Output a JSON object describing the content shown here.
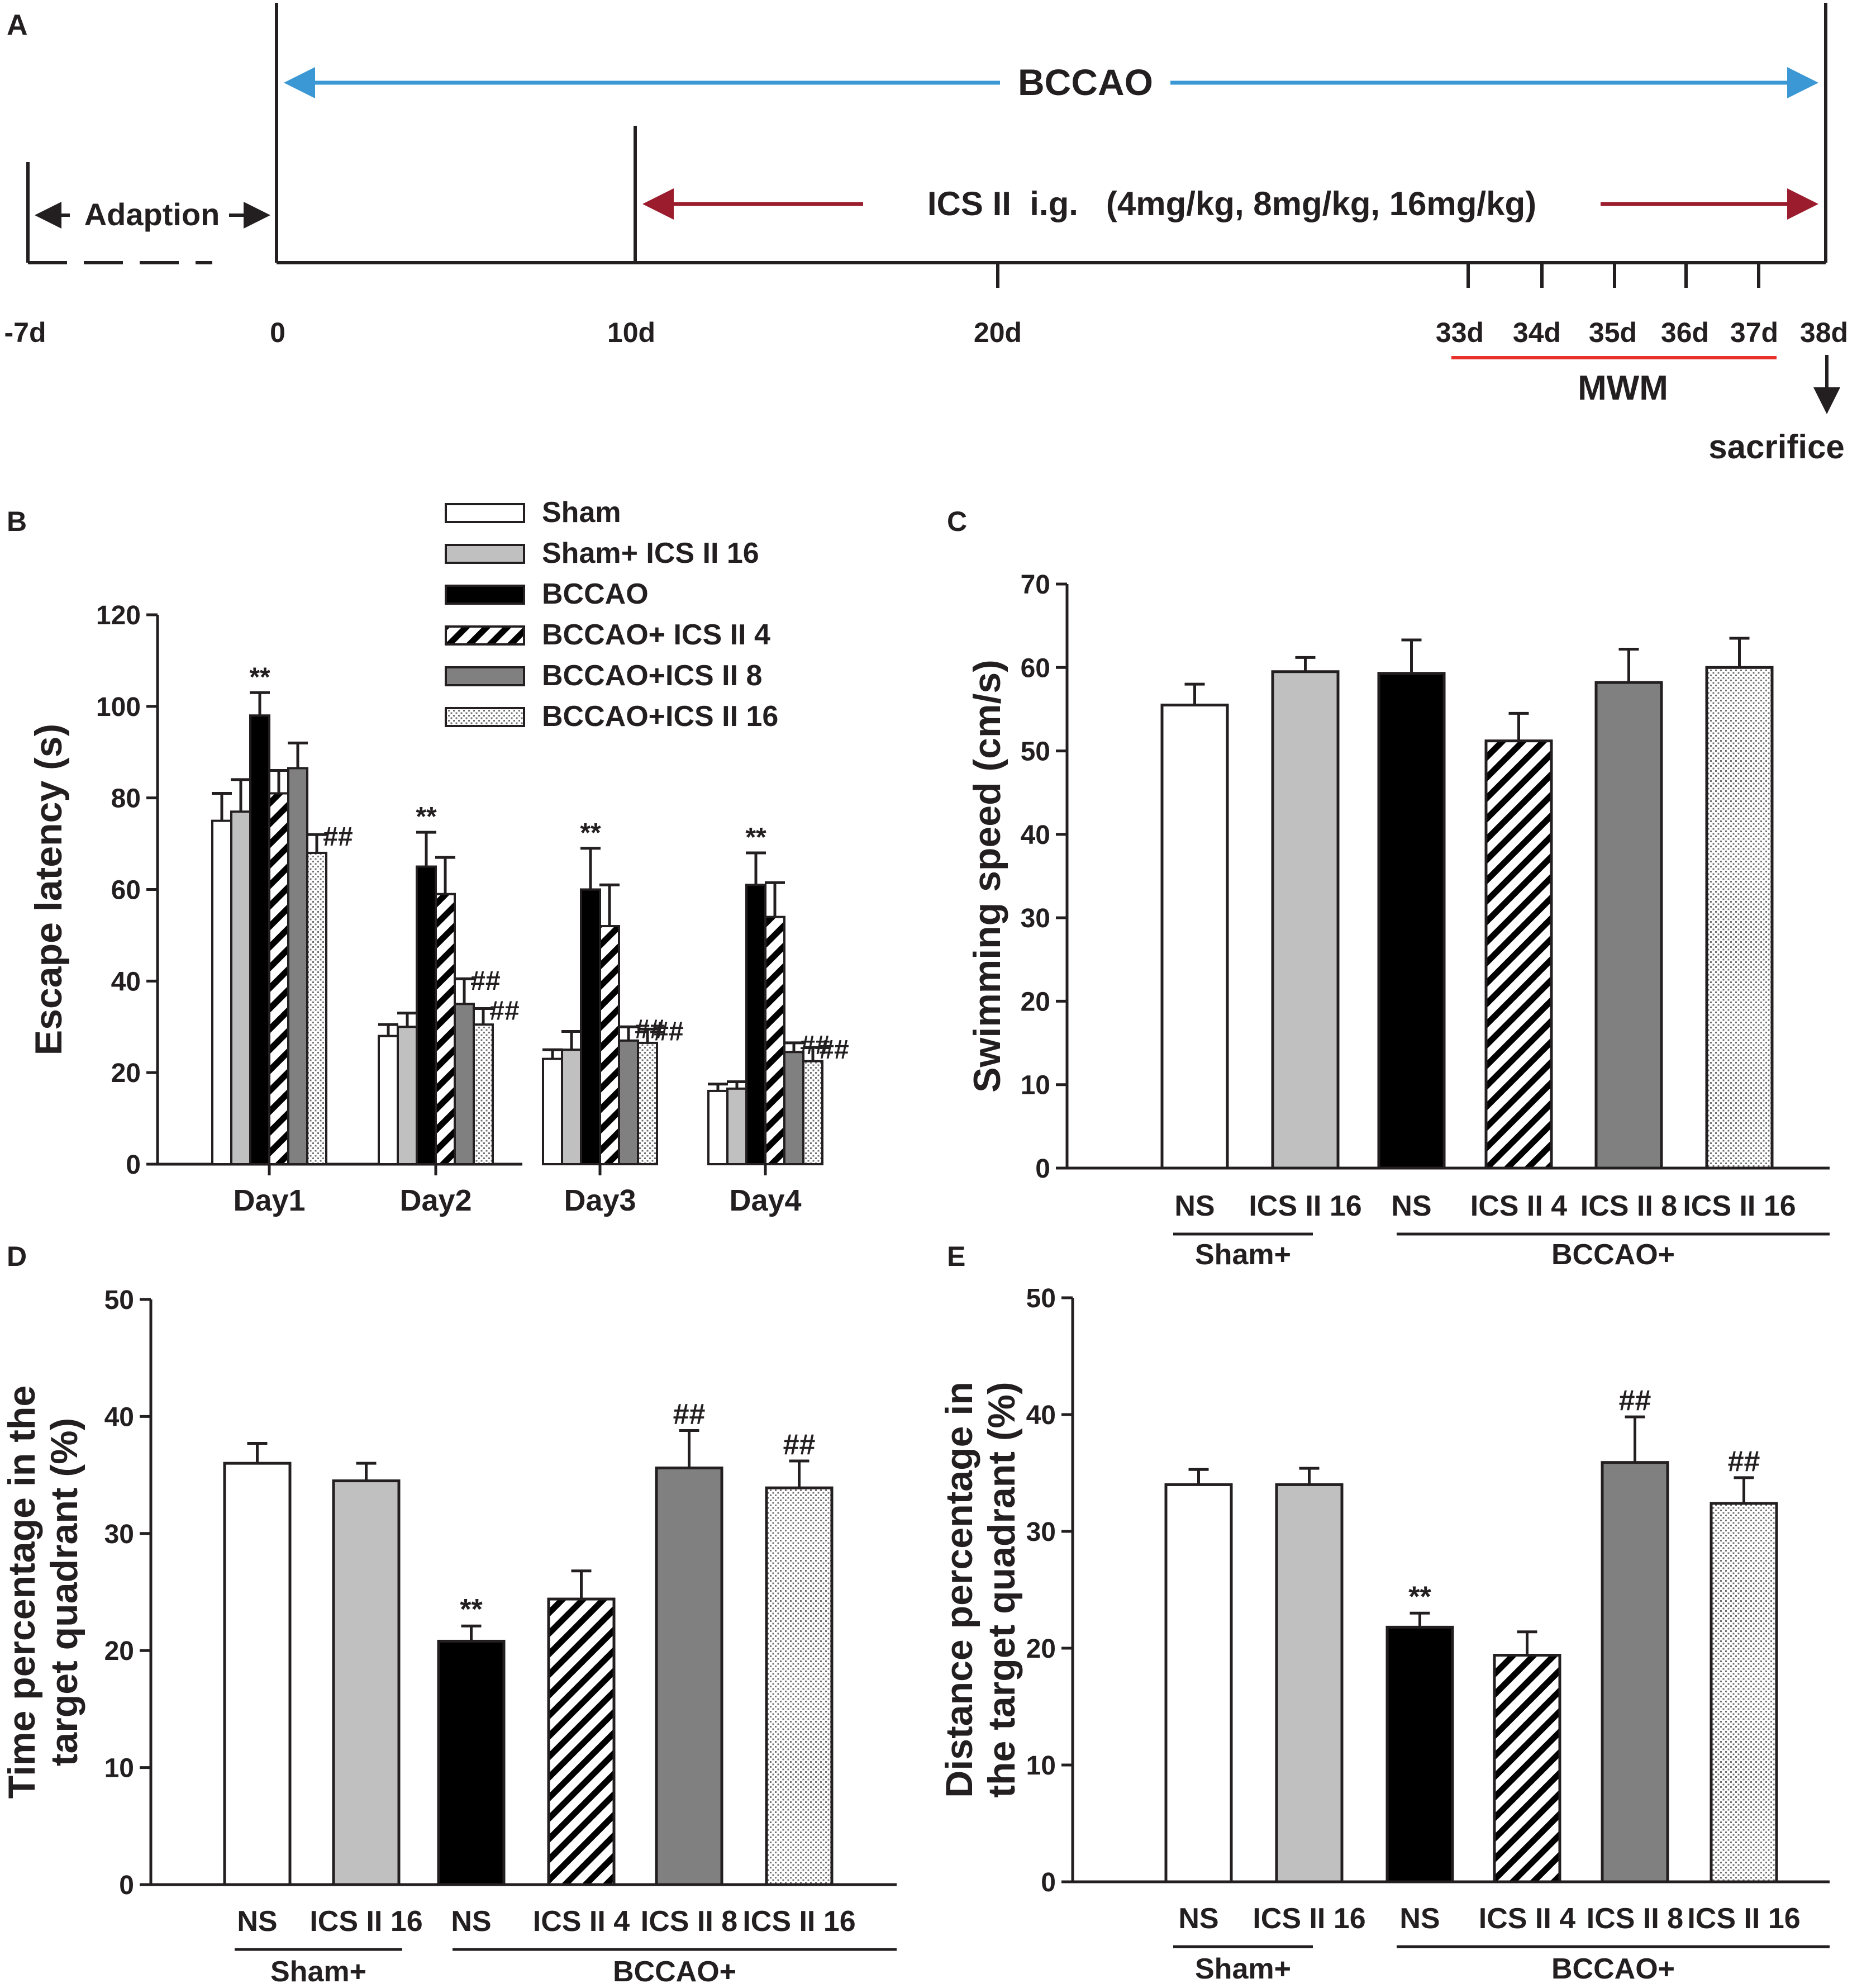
{
  "colors": {
    "sham": "#ffffff",
    "sham_ics16": "#c0c0c0",
    "bccao": "#000000",
    "bccao_ics4": "hatch",
    "bccao_ics8": "#808080",
    "bccao_ics16": "dots",
    "bccao_arrow": "#3b98d4",
    "ics_arrow": "#9b1c2c",
    "mwm_line": "#e8312a",
    "ink": "#231f20"
  },
  "timeline": {
    "panel_label": "A",
    "bccao_label": "BCCAO",
    "ics_label": "ICS II  i.g.   (4mg/kg, 8mg/kg, 16mg/kg)",
    "adaption_label": "Adaption",
    "ticks": [
      "-7d",
      "0",
      "10d",
      "20d",
      "33d",
      "34d",
      "35d",
      "36d",
      "37d",
      "38d"
    ],
    "mwm_label": "MWM",
    "sacrifice_label": "sacrifice"
  },
  "legend": {
    "items": [
      "Sham",
      "Sham+ ICS II 16",
      "BCCAO",
      "BCCAO+ ICS II 4",
      "BCCAO+ICS II 8",
      "BCCAO+ICS II 16"
    ]
  },
  "group_labels": {
    "sham_plus": "Sham+",
    "bccao_plus": "BCCAO+"
  },
  "chart_data": [
    {
      "panel": "B",
      "type": "bar",
      "ylabel": "Escape latency (s)",
      "xlabel": "",
      "ylim": [
        0,
        120
      ],
      "yticks": [
        "0",
        "20",
        "40",
        "60",
        "80",
        "100",
        "120"
      ],
      "categories": [
        "Day1",
        "Day2",
        "Day3",
        "Day4"
      ],
      "series": [
        {
          "name": "Sham",
          "values": [
            75,
            28,
            23,
            16
          ],
          "errors": [
            6,
            2.5,
            2,
            1.5
          ]
        },
        {
          "name": "Sham+ ICS II 16",
          "values": [
            77,
            30,
            25,
            16.5
          ],
          "errors": [
            7,
            3,
            4,
            1.5
          ]
        },
        {
          "name": "BCCAO",
          "values": [
            98,
            65,
            60,
            61
          ],
          "errors": [
            5,
            7.5,
            9,
            7
          ]
        },
        {
          "name": "BCCAO+ ICS II 4",
          "values": [
            81,
            59,
            52,
            54
          ],
          "errors": [
            5,
            8,
            9,
            7.5
          ]
        },
        {
          "name": "BCCAO+ICS II 8",
          "values": [
            86.5,
            35,
            27,
            24.5
          ],
          "errors": [
            5.5,
            5.5,
            3,
            2
          ]
        },
        {
          "name": "BCCAO+ICS II 16",
          "values": [
            68,
            30.5,
            26.5,
            22.5
          ],
          "errors": [
            4,
            3.5,
            3,
            3
          ]
        }
      ],
      "annotations": [
        {
          "category": "Day1",
          "series": "BCCAO",
          "text": "**"
        },
        {
          "category": "Day1",
          "series": "BCCAO+ICS II 16",
          "text": "##"
        },
        {
          "category": "Day2",
          "series": "BCCAO",
          "text": "**"
        },
        {
          "category": "Day2",
          "series": "BCCAO+ICS II 8",
          "text": "##"
        },
        {
          "category": "Day2",
          "series": "BCCAO+ICS II 16",
          "text": "##"
        },
        {
          "category": "Day3",
          "series": "BCCAO",
          "text": "**"
        },
        {
          "category": "Day3",
          "series": "BCCAO+ICS II 8",
          "text": "##"
        },
        {
          "category": "Day3",
          "series": "BCCAO+ICS II 16",
          "text": "##"
        },
        {
          "category": "Day4",
          "series": "BCCAO",
          "text": "**"
        },
        {
          "category": "Day4",
          "series": "BCCAO+ICS II 8",
          "text": "##"
        },
        {
          "category": "Day4",
          "series": "BCCAO+ICS II 16",
          "text": "##"
        }
      ]
    },
    {
      "panel": "C",
      "type": "bar",
      "ylabel": "Swimming speed (cm/s)",
      "ylim": [
        0,
        70
      ],
      "yticks": [
        "0",
        "10",
        "20",
        "30",
        "40",
        "50",
        "60",
        "70"
      ],
      "categories": [
        "NS",
        "ICS II 16",
        "NS",
        "ICS II 4",
        "ICS II 8",
        "ICS II 16"
      ],
      "groups": [
        "Sham+",
        "BCCAO+"
      ],
      "values": [
        55.5,
        59.5,
        59.3,
        51.2,
        58.2,
        60
      ],
      "errors": [
        2.5,
        1.7,
        4,
        3.3,
        4,
        3.5
      ],
      "annotations": [
        "",
        "",
        "",
        "",
        "",
        ""
      ]
    },
    {
      "panel": "D",
      "type": "bar",
      "ylabel": "Time percentage in the target quadrant (%)",
      "ylabel_lines": [
        "Time percentage in the",
        "target quadrant (%)"
      ],
      "ylim": [
        0,
        50
      ],
      "yticks": [
        "0",
        "10",
        "20",
        "30",
        "40",
        "50"
      ],
      "categories": [
        "NS",
        "ICS II 16",
        "NS",
        "ICS II 4",
        "ICS II 8",
        "ICS II 16"
      ],
      "groups": [
        "Sham+",
        "BCCAO+"
      ],
      "values": [
        36,
        34.5,
        20.8,
        24.4,
        35.6,
        33.9
      ],
      "errors": [
        1.7,
        1.5,
        1.3,
        2.4,
        3.2,
        2.3
      ],
      "annotations": [
        "",
        "",
        "**",
        "",
        "##",
        "##"
      ]
    },
    {
      "panel": "E",
      "type": "bar",
      "ylabel": "Distance percentage in the target quadrant (%)",
      "ylabel_lines": [
        "Distance percentage in",
        "the target quadrant (%)"
      ],
      "ylim": [
        0,
        50
      ],
      "yticks": [
        "0",
        "10",
        "20",
        "30",
        "40",
        "50"
      ],
      "categories": [
        "NS",
        "ICS II 16",
        "NS",
        "ICS II 4",
        "ICS II 8",
        "ICS II 16"
      ],
      "groups": [
        "Sham+",
        "BCCAO+"
      ],
      "values": [
        34,
        34,
        21.8,
        19.4,
        35.9,
        32.4
      ],
      "errors": [
        1.3,
        1.4,
        1.2,
        2,
        3.9,
        2.2
      ],
      "annotations": [
        "",
        "",
        "**",
        "",
        "##",
        "##"
      ]
    }
  ]
}
